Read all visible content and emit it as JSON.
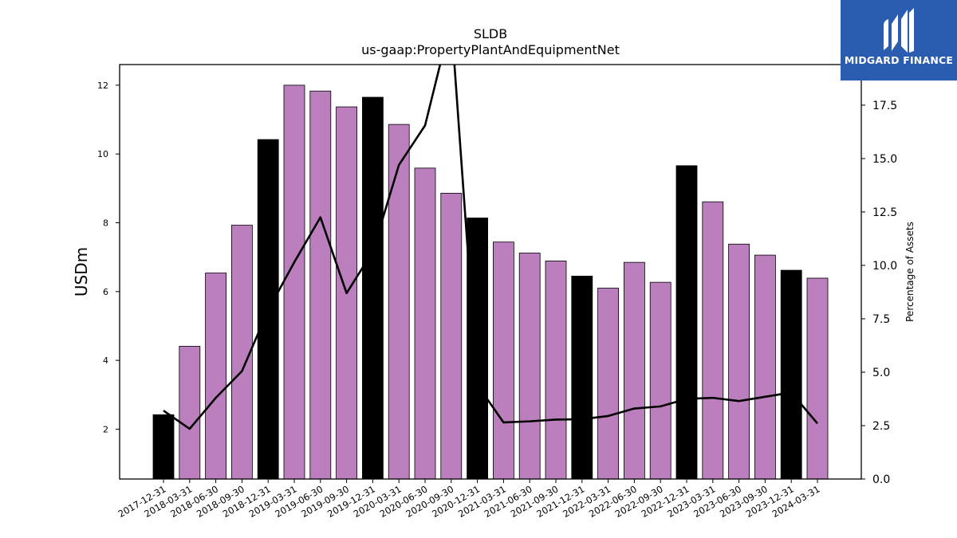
{
  "brand": {
    "name": "MIDGARD FINANCE",
    "logo_icon": "midgard-m-icon",
    "background": "#2a5db0"
  },
  "chart_data": {
    "type": "bar",
    "title": "SLDB",
    "subtitle": "us-gaap:PropertyPlantAndEquipmentNet",
    "ylabel": "USDm",
    "y2label": "Percentage of Assets",
    "ylim": [
      0.55,
      12.6
    ],
    "y2lim": [
      0,
      19.4
    ],
    "yticks": [
      2,
      4,
      6,
      8,
      10,
      12
    ],
    "y2ticks": [
      "0.0",
      "2.5",
      "5.0",
      "7.5",
      "10.0",
      "12.5",
      "15.0",
      "17.5"
    ],
    "categories": [
      "2017-12-31",
      "2018-03-31",
      "2018-06-30",
      "2018-09-30",
      "2018-12-31",
      "2019-03-31",
      "2019-06-30",
      "2019-09-30",
      "2019-12-31",
      "2020-03-31",
      "2020-06-30",
      "2020-09-30",
      "2020-12-31",
      "2021-03-31",
      "2021-06-30",
      "2021-09-30",
      "2021-12-31",
      "2022-03-31",
      "2022-06-30",
      "2022-09-30",
      "2022-12-31",
      "2023-03-31",
      "2023-06-30",
      "2023-09-30",
      "2023-12-31",
      "2024-03-31"
    ],
    "series": [
      {
        "type": "bar",
        "values": [
          2.42,
          4.41,
          6.54,
          7.93,
          10.42,
          12.0,
          11.83,
          11.37,
          11.65,
          10.86,
          9.59,
          8.86,
          8.14,
          7.44,
          7.12,
          6.89,
          6.45,
          6.1,
          6.85,
          6.27,
          9.66,
          8.61,
          7.38,
          7.06,
          6.62,
          6.39
        ],
        "colors": {
          "annual": "#000000",
          "quarterly": "#bb7fbd"
        },
        "annual_flags": [
          true,
          false,
          false,
          false,
          true,
          false,
          false,
          false,
          true,
          false,
          false,
          false,
          true,
          false,
          false,
          false,
          true,
          false,
          false,
          false,
          true,
          false,
          false,
          false,
          true,
          false
        ]
      },
      {
        "type": "line",
        "axis": "y2",
        "color": "#000000",
        "values": [
          3.2,
          2.35,
          3.8,
          5.05,
          7.9,
          10.15,
          12.25,
          8.7,
          10.65,
          14.7,
          16.55,
          21.5,
          4.4,
          2.65,
          2.7,
          2.78,
          2.8,
          2.95,
          3.3,
          3.4,
          3.75,
          3.8,
          3.65,
          3.85,
          4.05,
          2.6
        ]
      }
    ]
  }
}
